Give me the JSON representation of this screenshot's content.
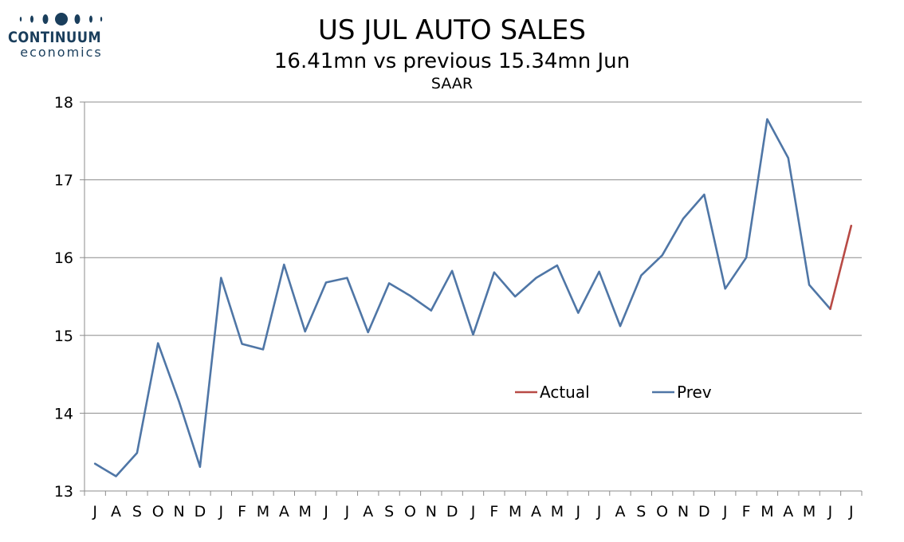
{
  "logo": {
    "brand": "CONTINUUM",
    "sub": "economics",
    "color": "#1a3e5c"
  },
  "chart_data": {
    "type": "line",
    "title": "US JUL AUTO SALES",
    "subtitle": "16.41mn vs previous 15.34mn Jun",
    "subtitle2": "SAAR",
    "xlabel": "",
    "ylabel": "",
    "ylim": [
      13,
      18
    ],
    "yticks": [
      13,
      14,
      15,
      16,
      17,
      18
    ],
    "grid": true,
    "legend_position": "center-right",
    "categories": [
      "J",
      "A",
      "S",
      "O",
      "N",
      "D",
      "J",
      "F",
      "M",
      "A",
      "M",
      "J",
      "J",
      "A",
      "S",
      "O",
      "N",
      "D",
      "J",
      "F",
      "M",
      "A",
      "M",
      "J",
      "J",
      "A",
      "S",
      "O",
      "N",
      "D",
      "J",
      "F",
      "M",
      "A",
      "M",
      "J",
      "J"
    ],
    "series": [
      {
        "name": "Prev",
        "color": "#4f76a6",
        "values": [
          13.35,
          13.19,
          13.49,
          14.9,
          14.15,
          13.31,
          15.74,
          14.89,
          14.82,
          15.91,
          15.05,
          15.68,
          15.74,
          15.04,
          15.67,
          15.51,
          15.32,
          15.83,
          15.01,
          15.81,
          15.5,
          15.74,
          15.9,
          15.29,
          15.82,
          15.12,
          15.77,
          16.03,
          16.5,
          16.81,
          15.6,
          16.0,
          17.78,
          17.28,
          15.65,
          15.34,
          null
        ]
      },
      {
        "name": "Actual",
        "color": "#b84a45",
        "values": [
          null,
          null,
          null,
          null,
          null,
          null,
          null,
          null,
          null,
          null,
          null,
          null,
          null,
          null,
          null,
          null,
          null,
          null,
          null,
          null,
          null,
          null,
          null,
          null,
          null,
          null,
          null,
          null,
          null,
          null,
          null,
          null,
          null,
          null,
          null,
          15.34,
          16.41
        ]
      }
    ]
  }
}
